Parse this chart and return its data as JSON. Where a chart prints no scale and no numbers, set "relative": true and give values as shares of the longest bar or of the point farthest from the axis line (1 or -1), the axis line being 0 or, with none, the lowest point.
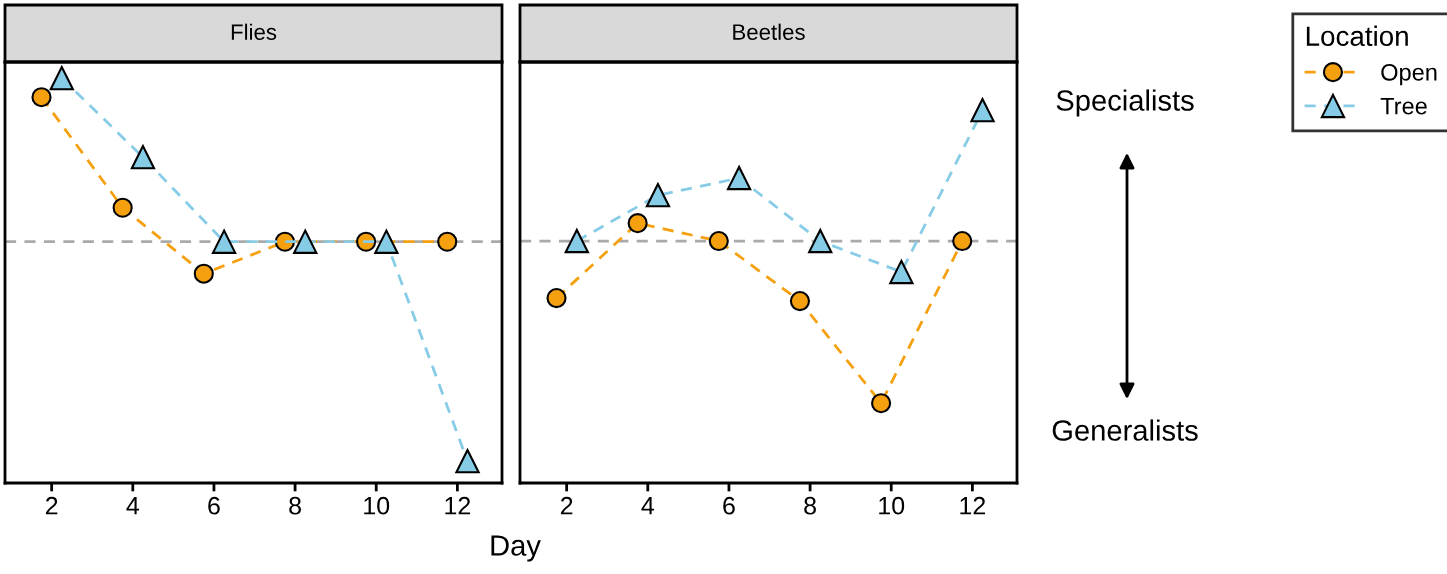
{
  "chart_data": [
    {
      "type": "line",
      "title": "Flies",
      "xlabel": "Day",
      "relative": true,
      "xlim": [
        0.85,
        13.1
      ],
      "xticks": [
        2,
        4,
        6,
        8,
        10,
        12
      ],
      "grid": false,
      "line_style": "dashed",
      "series": [
        {
          "color": "#f5a00f",
          "marker": "circle",
          "x": [
            1.75,
            3.75,
            5.75,
            7.75,
            9.75,
            11.75
          ],
          "values": [
            0.953,
            0.68,
            0.517,
            0.596,
            0.596,
            0.596
          ]
        },
        {
          "color": "#87cce6",
          "marker": "triangle",
          "x": [
            2.25,
            4.25,
            6.25,
            8.25,
            10.25,
            12.25
          ],
          "values": [
            1.0,
            0.805,
            0.596,
            0.596,
            0.596,
            0.054
          ]
        }
      ],
      "ref_lines": [
        {
          "axis": "y",
          "value": 0.596,
          "color": "#aaaaaa",
          "line_style": "dashed"
        }
      ]
    },
    {
      "type": "line",
      "title": "Beetles",
      "relative": true,
      "xlim": [
        0.85,
        13.1
      ],
      "xticks": [
        2,
        4,
        6,
        8,
        10,
        12
      ],
      "grid": false,
      "legend": "top right",
      "legend_title": "Location",
      "line_style": "dashed",
      "series": [
        {
          "name": "Open",
          "color": "#f5a00f",
          "marker": "circle",
          "x": [
            1.75,
            3.75,
            5.75,
            7.75,
            9.75,
            11.75
          ],
          "values": [
            0.496,
            0.697,
            0.649,
            0.488,
            0.214,
            0.649
          ]
        },
        {
          "name": "Tree",
          "color": "#87cce6",
          "marker": "triangle",
          "x": [
            2.25,
            4.25,
            6.25,
            8.25,
            10.25,
            12.25
          ],
          "values": [
            0.649,
            0.772,
            0.818,
            0.649,
            0.566,
            1.0
          ]
        }
      ],
      "ref_lines": [
        {
          "axis": "y",
          "value": 0.649,
          "color": "#aaaaaa",
          "line_style": "dashed"
        }
      ],
      "annotations": [
        "Specialists",
        "Generalists"
      ]
    }
  ]
}
